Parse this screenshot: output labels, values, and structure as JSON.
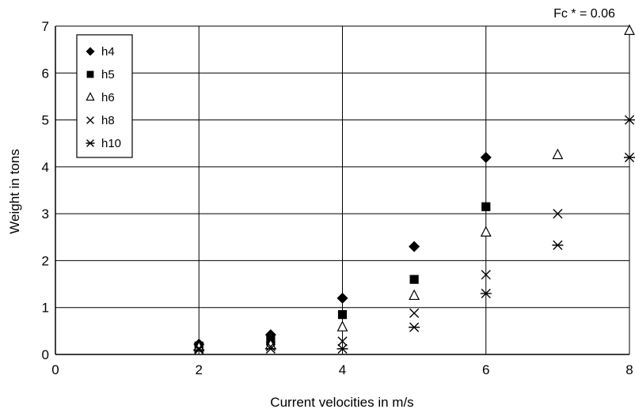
{
  "chart_data": {
    "type": "scatter",
    "title": "",
    "annotation": "Fc * = 0.06",
    "xlabel": "Current velocities in m/s",
    "ylabel": "Weight in tons",
    "xlim": [
      0,
      8
    ],
    "ylim": [
      0,
      7
    ],
    "xticks": [
      0,
      2,
      4,
      6,
      8
    ],
    "yticks": [
      0,
      1,
      2,
      3,
      4,
      5,
      6,
      7
    ],
    "grid": true,
    "legend_position": "top-left",
    "series": [
      {
        "name": "h4",
        "marker": "diamond",
        "x": [
          2,
          3,
          4,
          5,
          6
        ],
        "y": [
          0.22,
          0.42,
          1.2,
          2.3,
          4.2
        ]
      },
      {
        "name": "h5",
        "marker": "square",
        "x": [
          2,
          3,
          4,
          5,
          6
        ],
        "y": [
          0.18,
          0.3,
          0.85,
          1.6,
          3.15
        ]
      },
      {
        "name": "h6",
        "marker": "triangle",
        "x": [
          2,
          3,
          4,
          5,
          6,
          7,
          8
        ],
        "y": [
          0.15,
          0.2,
          0.58,
          1.25,
          2.6,
          4.25,
          6.9
        ]
      },
      {
        "name": "h8",
        "marker": "cross",
        "x": [
          2,
          3,
          4,
          5,
          6,
          7
        ],
        "y": [
          0.13,
          0.17,
          0.28,
          0.88,
          1.7,
          3.0
        ]
      },
      {
        "name": "h10",
        "marker": "asterisk",
        "x": [
          2,
          3,
          4,
          5,
          6,
          7,
          8,
          8
        ],
        "y": [
          0.1,
          0.12,
          0.12,
          0.58,
          1.3,
          2.33,
          4.2,
          5.0
        ]
      }
    ]
  }
}
